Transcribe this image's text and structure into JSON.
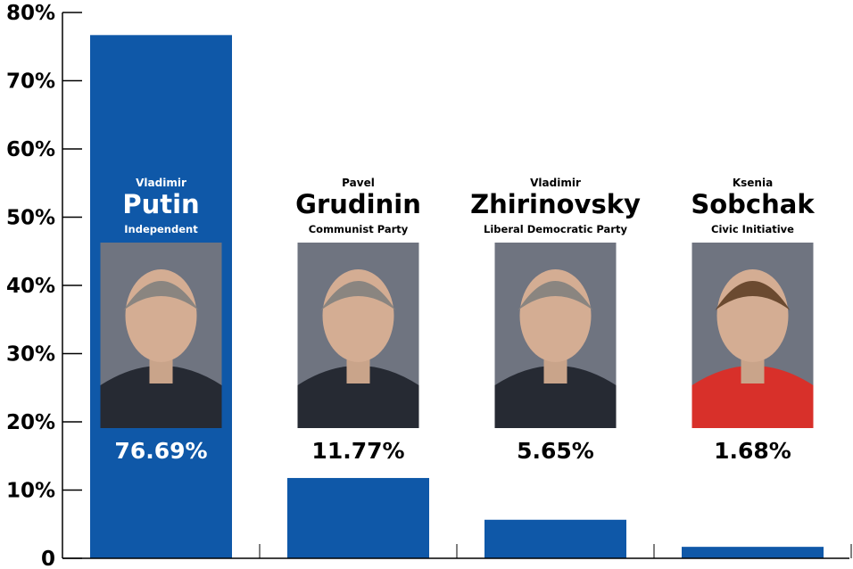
{
  "chart_data": {
    "type": "bar",
    "ylim": [
      0,
      80
    ],
    "y_ticks": [
      {
        "value": 0,
        "label": "0"
      },
      {
        "value": 10,
        "label": "10%"
      },
      {
        "value": 20,
        "label": "20%"
      },
      {
        "value": 30,
        "label": "30%"
      },
      {
        "value": 40,
        "label": "40%"
      },
      {
        "value": 50,
        "label": "50%"
      },
      {
        "value": 60,
        "label": "60%"
      },
      {
        "value": 70,
        "label": "70%"
      },
      {
        "value": 80,
        "label": "80%"
      }
    ],
    "grid": false,
    "categories": [
      {
        "first_name": "Vladimir",
        "last_name": "Putin",
        "party": "Independent",
        "value": 76.69,
        "value_label": "76.69%"
      },
      {
        "first_name": "Pavel",
        "last_name": "Grudinin",
        "party": "Communist Party",
        "value": 11.77,
        "value_label": "11.77%"
      },
      {
        "first_name": "Vladimir",
        "last_name": "Zhirinovsky",
        "party": "Liberal Democratic Party",
        "value": 5.65,
        "value_label": "5.65%"
      },
      {
        "first_name": "Ksenia",
        "last_name": "Sobchak",
        "party": "Civic Initiative",
        "value": 1.68,
        "value_label": "1.68%"
      }
    ],
    "colors": {
      "bar": "#0f58a8",
      "axis": "#000000",
      "text_dark": "#000000",
      "text_on_bar": "#ffffff"
    }
  }
}
